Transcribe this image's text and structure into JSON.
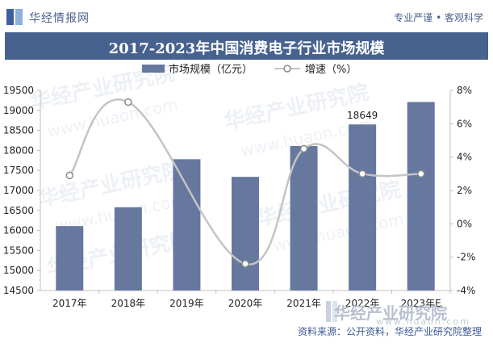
{
  "header": {
    "brand": "华经情报网",
    "tagline": "专业严谨 • 客观科学"
  },
  "chart_data": {
    "type": "bar+line",
    "title": "2017-2023年中国消费电子行业市场规模",
    "categories": [
      "2017年",
      "2018年",
      "2019年",
      "2020年",
      "2021年",
      "2022年",
      "2023年E"
    ],
    "series": [
      {
        "name": "市场规模（亿元）",
        "type": "bar",
        "axis": "left",
        "values": [
          16110,
          16580,
          17780,
          17340,
          18110,
          18649,
          19210
        ]
      },
      {
        "name": "增速（%）",
        "type": "line",
        "axis": "right",
        "smooth": true,
        "values": [
          2.9,
          7.3,
          null,
          -2.4,
          4.5,
          3.0,
          3.0
        ]
      }
    ],
    "y_left": {
      "min": 14500,
      "max": 19500,
      "step": 500,
      "ticks": [
        "14500",
        "15000",
        "15500",
        "16000",
        "16500",
        "17000",
        "17500",
        "18000",
        "18500",
        "19000",
        "19500"
      ]
    },
    "y_right": {
      "min": -4,
      "max": 8,
      "step": 2,
      "ticks": [
        "-4%",
        "-2%",
        "0%",
        "2%",
        "4%",
        "6%",
        "8%"
      ]
    },
    "data_labels": [
      {
        "category": "2022年",
        "series": "市场规模（亿元）",
        "text": "18649"
      }
    ],
    "legend": [
      "市场规模（亿元）",
      "增速（%）"
    ],
    "legend_position": "top-center",
    "colors": {
      "bar": "#67789f",
      "line": "#c4c4c4",
      "marker_fill": "#ffffff",
      "marker_stroke": "#8a8a8a"
    }
  },
  "watermark": {
    "cn": "华经产业研究院",
    "en": "www.huaon.com"
  },
  "footer": {
    "source": "资料来源：公开资料，华经产业研究院整理",
    "logo_cn": "华经产业研究院",
    "logo_en": "www.huaon.com"
  },
  "colors": {
    "title_bar": "#47628f",
    "brand_text": "#4a5f8d"
  }
}
